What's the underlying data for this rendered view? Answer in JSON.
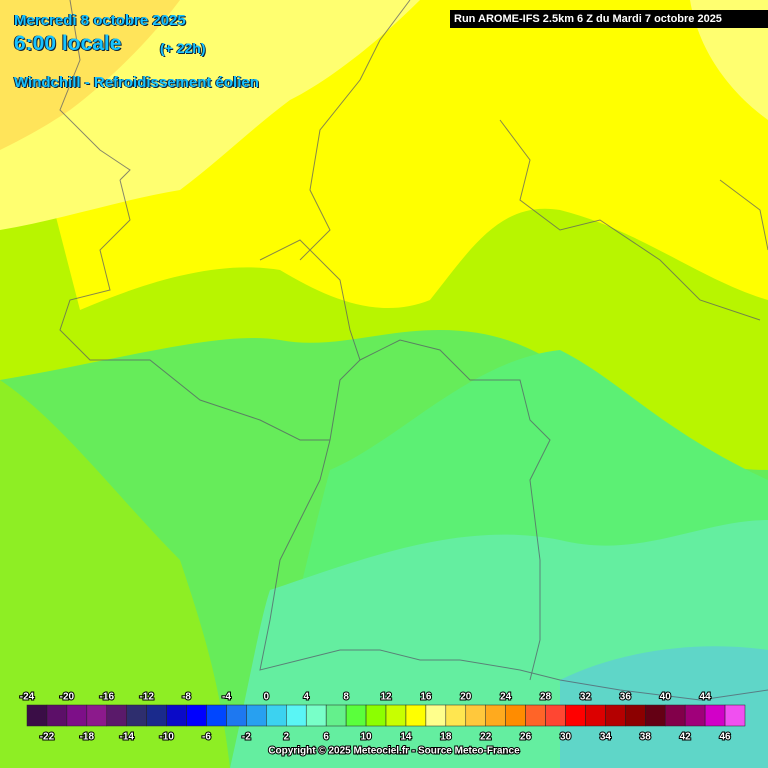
{
  "header": {
    "date": "Mercredi 8 octobre 2025",
    "time": "6:00 locale",
    "lead": "(+ 22h)",
    "parameter": "Windchill - Refroidissement éolien"
  },
  "run": "Run AROME-IFS 2.5km 6 Z du Mardi 7 octobre 2025",
  "legend": {
    "labels": [
      -24,
      -22,
      -20,
      -18,
      -16,
      -14,
      -12,
      -10,
      -8,
      -6,
      -4,
      -2,
      0,
      2,
      4,
      6,
      8,
      10,
      12,
      14,
      16,
      18,
      20,
      22,
      24,
      26,
      28,
      30,
      32,
      34,
      36,
      38,
      40,
      42,
      44,
      46
    ],
    "colors": [
      "#3a0d46",
      "#5c0f68",
      "#7d0f88",
      "#8c1a8c",
      "#5a1a6a",
      "#2e2e6e",
      "#1a2a8c",
      "#0a0ac8",
      "#0000ff",
      "#0046ff",
      "#1e78f0",
      "#28a0f0",
      "#3cd2f0",
      "#5af5f5",
      "#78ffc8",
      "#64f08c",
      "#5aff3c",
      "#8cff00",
      "#c8ff00",
      "#ffff00",
      "#ffff8c",
      "#ffe650",
      "#ffc83c",
      "#ffaa1e",
      "#ff8c00",
      "#ff6428",
      "#ff4632",
      "#ff0000",
      "#dc0000",
      "#b40000",
      "#8c0000",
      "#640014",
      "#82004a",
      "#a0007a",
      "#d200c8",
      "#f050f0"
    ]
  },
  "copyright": "Copyright © 2025 Meteociel.fr - Source Meteo-France"
}
